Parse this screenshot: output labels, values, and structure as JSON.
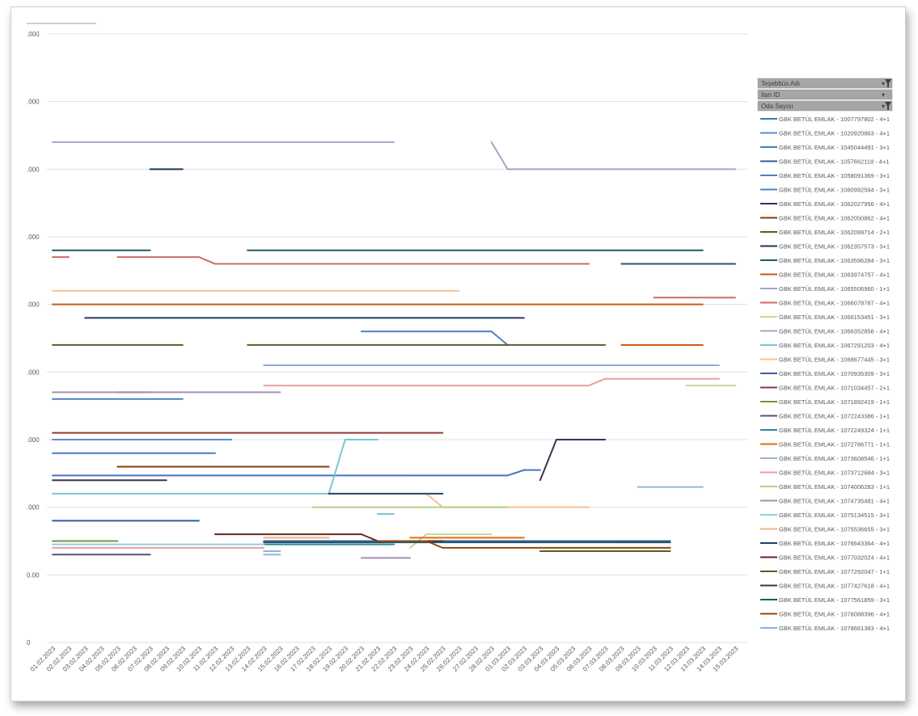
{
  "filter_buttons": [
    "Teşebbüs Adı",
    "İlan ID",
    "Oda Sayısı"
  ],
  "y_axis": {
    "ticks": [
      0,
      100,
      200,
      300,
      400,
      500,
      600,
      700,
      800,
      900
    ],
    "labels": [
      "0",
      "0.00",
      ".000",
      ".000",
      ".000",
      ".000",
      ".000",
      ".000",
      ".000",
      ".000"
    ]
  },
  "chart_data": {
    "type": "line",
    "title": "",
    "xlabel": "",
    "ylabel": "",
    "ylim": [
      0,
      900
    ],
    "grid": true,
    "legend_position": "right",
    "categories": [
      "01.02.2023",
      "02.02.2023",
      "03.02.2023",
      "04.02.2023",
      "05.02.2023",
      "06.02.2023",
      "07.02.2023",
      "08.02.2023",
      "09.02.2023",
      "10.02.2023",
      "11.02.2023",
      "12.02.2023",
      "13.02.2023",
      "14.02.2023",
      "15.02.2023",
      "16.02.2023",
      "17.02.2023",
      "18.02.2023",
      "19.02.2023",
      "20.02.2023",
      "21.02.2023",
      "22.02.2023",
      "23.02.2023",
      "24.02.2023",
      "25.02.2023",
      "26.02.2023",
      "27.02.2023",
      "28.02.2023",
      "01.03.2023",
      "02.03.2023",
      "03.03.2023",
      "04.03.2023",
      "05.03.2023",
      "06.03.2023",
      "07.03.2023",
      "08.03.2023",
      "09.03.2023",
      "10.03.2023",
      "11.03.2023",
      "12.03.2023",
      "13.03.2023",
      "14.03.2023",
      "15.03.2023"
    ],
    "series": [
      {
        "name": "GBK BETÜL EMLAK - 1007797802 - 4+1",
        "color": "#4472c4",
        "segments": [
          [
            0,
            247,
            28,
            247
          ],
          [
            28,
            247,
            29,
            255
          ],
          [
            29,
            255,
            30,
            255
          ]
        ]
      },
      {
        "name": "GBK BETÜL EMLAK - 1020920863 - 4+1",
        "color": "#5b8bd0",
        "segments": [
          [
            0,
            300,
            11,
            300
          ]
        ]
      },
      {
        "name": "GBK BETÜL EMLAK - 1045044491 - 3+1",
        "color": "#4a7cc2",
        "segments": [
          [
            0,
            280,
            10,
            280
          ]
        ]
      },
      {
        "name": "GBK BETÜL EMLAK - 1057662118 - 4+1",
        "color": "#2e5ea8",
        "segments": [
          [
            0,
            180,
            9,
            180
          ]
        ]
      },
      {
        "name": "GBK BETÜL EMLAK - 1058091369 - 3+1",
        "color": "#4f81bd",
        "segments": [
          [
            19,
            460,
            27,
            460
          ],
          [
            27,
            460,
            28,
            440
          ]
        ]
      },
      {
        "name": "GBK BETÜL EMLAK - 1060992594 - 3+1",
        "color": "#4f81bd",
        "segments": [
          [
            0,
            360,
            8,
            360
          ]
        ]
      },
      {
        "name": "GBK BETÜL EMLAK - 1062027956 - 4+1",
        "color": "#1f3864",
        "segments": [
          [
            2,
            480,
            29,
            480
          ]
        ]
      },
      {
        "name": "GBK BETÜL EMLAK - 1062050862 - 4+1",
        "color": "#843c0c",
        "segments": [
          [
            4,
            260,
            17,
            260
          ]
        ]
      },
      {
        "name": "GBK BETÜL EMLAK - 1062099714 - 2+1",
        "color": "#4e6228",
        "segments": [
          [
            0,
            440,
            8,
            440
          ],
          [
            12,
            440,
            34,
            440
          ]
        ]
      },
      {
        "name": "GBK BETÜL EMLAK - 1062357573 - 3+1",
        "color": "#17375e",
        "segments": [
          [
            6,
            700,
            8,
            700
          ]
        ]
      },
      {
        "name": "GBK BETÜL EMLAK - 1063596284 - 3+1",
        "color": "#215868",
        "segments": [
          [
            0,
            580,
            6,
            580
          ],
          [
            12,
            580,
            40,
            580
          ],
          [
            35,
            560,
            42,
            560
          ]
        ]
      },
      {
        "name": "GBK BETÜL EMLAK - 1063974757 - 4+1",
        "color": "#c55a11",
        "segments": [
          [
            0,
            500,
            40,
            500
          ],
          [
            35,
            440,
            40,
            440
          ]
        ]
      },
      {
        "name": "GBK BETÜL EMLAK - 1065506960 - 1+1",
        "color": "#8eaadb",
        "segments": [
          [
            13,
            410,
            41,
            410
          ]
        ]
      },
      {
        "name": "GBK BETÜL EMLAK - 1066078787 - 4+1",
        "color": "#cd6b6b",
        "segments": [
          [
            0,
            570,
            1,
            570
          ],
          [
            4,
            570,
            9,
            570
          ],
          [
            9,
            570,
            10,
            560
          ],
          [
            10,
            560,
            33,
            560
          ],
          [
            37,
            510,
            42,
            510
          ]
        ]
      },
      {
        "name": "GBK BETÜL EMLAK - 1066153451 - 3+1",
        "color": "#c4d79b",
        "segments": [
          [
            22,
            140,
            23,
            160
          ],
          [
            23,
            160,
            27,
            160
          ],
          [
            39,
            380,
            42,
            380
          ]
        ]
      },
      {
        "name": "GBK BETÜL EMLAK - 1066352856 - 4+1",
        "color": "#a9a1cb",
        "segments": [
          [
            0,
            740,
            21,
            740
          ],
          [
            27,
            740,
            28,
            700
          ],
          [
            28,
            700,
            42,
            700
          ]
        ]
      },
      {
        "name": "GBK BETÜL EMLAK - 1067291203 - 4+1",
        "color": "#7fc3d8",
        "segments": [
          [
            0,
            220,
            17,
            220
          ],
          [
            17,
            220,
            18,
            300
          ],
          [
            18,
            300,
            20,
            300
          ],
          [
            20,
            190,
            21,
            190
          ]
        ]
      },
      {
        "name": "GBK BETÜL EMLAK - 1068677445 - 3+1",
        "color": "#fac090",
        "segments": [
          [
            0,
            520,
            25,
            520
          ],
          [
            23,
            220,
            24,
            200
          ],
          [
            24,
            200,
            33,
            200
          ]
        ]
      },
      {
        "name": "GBK BETÜL EMLAK - 1070935309 - 3+1",
        "color": "#3a5fa0",
        "segments": [
          [
            13,
            150,
            38,
            150
          ]
        ]
      },
      {
        "name": "GBK BETÜL EMLAK - 1071034457 - 2+1",
        "color": "#953735",
        "segments": [
          [
            0,
            310,
            24,
            310
          ],
          [
            4,
            370,
            6,
            370
          ]
        ]
      },
      {
        "name": "GBK BETÜL EMLAK - 1071892419 - 1+1",
        "color": "#77933c",
        "segments": [
          [
            0,
            150,
            4,
            150
          ]
        ]
      },
      {
        "name": "GBK BETÜL EMLAK - 1072243386 - 1+1",
        "color": "#604a7b",
        "segments": [
          [
            0,
            130,
            6,
            130
          ]
        ]
      },
      {
        "name": "GBK BETÜL EMLAK - 1072249324 - 1+1",
        "color": "#31859c",
        "segments": [
          [
            13,
            145,
            21,
            145
          ]
        ]
      },
      {
        "name": "GBK BETÜL EMLAK - 1072786771 - 1+1",
        "color": "#e46c0a",
        "segments": [
          [
            22,
            155,
            29,
            155
          ]
        ]
      },
      {
        "name": "GBK BETÜL EMLAK - 1073608546 - 1+1",
        "color": "#95b3d7",
        "segments": [
          [
            36,
            230,
            40,
            230
          ],
          [
            13,
            130,
            14,
            130
          ]
        ]
      },
      {
        "name": "GBK BETÜL EMLAK - 1073712684 - 3+1",
        "color": "#e6a0a0",
        "segments": [
          [
            0,
            140,
            13,
            140
          ],
          [
            13,
            380,
            33,
            380
          ],
          [
            33,
            380,
            34,
            390
          ],
          [
            34,
            390,
            41,
            390
          ]
        ]
      },
      {
        "name": "GBK BETÜL EMLAK - 1074006283 - 1+1",
        "color": "#b3d08a",
        "segments": [
          [
            16,
            200,
            28,
            200
          ]
        ]
      },
      {
        "name": "GBK BETÜL EMLAK - 1074735481 - 4+1",
        "color": "#a68fb6",
        "segments": [
          [
            0,
            370,
            14,
            370
          ],
          [
            19,
            125,
            22,
            125
          ]
        ]
      },
      {
        "name": "GBK BETÜL EMLAK - 1075134515 - 3+1",
        "color": "#93cddd",
        "segments": [
          [
            0,
            145,
            13,
            145
          ]
        ]
      },
      {
        "name": "GBK BETÜL EMLAK - 1075536655 - 3+1",
        "color": "#f4b183",
        "segments": [
          [
            13,
            155,
            17,
            155
          ]
        ]
      },
      {
        "name": "GBK BETÜL EMLAK - 1076643364 - 4+1",
        "color": "#254061",
        "segments": [
          [
            17,
            220,
            24,
            220
          ]
        ]
      },
      {
        "name": "GBK BETÜL EMLAK - 1077032024 - 4+1",
        "color": "#632523",
        "segments": [
          [
            10,
            160,
            19,
            160
          ],
          [
            19,
            160,
            20,
            150
          ],
          [
            20,
            150,
            24,
            150
          ]
        ]
      },
      {
        "name": "GBK BETÜL EMLAK - 1077292047 - 1+1",
        "color": "#4f6228",
        "segments": [
          [
            30,
            135,
            38,
            135
          ]
        ]
      },
      {
        "name": "GBK BETÜL EMLAK - 1077427618 - 4+1",
        "color": "#403151",
        "segments": [
          [
            30,
            240,
            31,
            300
          ],
          [
            31,
            300,
            34,
            300
          ],
          [
            0,
            240,
            7,
            240
          ]
        ]
      },
      {
        "name": "GBK BETÜL EMLAK - 1077561859 - 3+1",
        "color": "#205867",
        "segments": [
          [
            13,
            148,
            38,
            148
          ]
        ]
      },
      {
        "name": "GBK BETÜL EMLAK - 1078088396 - 4+1",
        "color": "#974706",
        "segments": [
          [
            20,
            150,
            23,
            150
          ],
          [
            23,
            150,
            24,
            140
          ],
          [
            24,
            140,
            38,
            140
          ]
        ]
      },
      {
        "name": "GBK BETÜL EMLAK - 1078661383 - 4+1",
        "color": "#8db3e2",
        "segments": [
          [
            13,
            135,
            14,
            135
          ]
        ]
      }
    ]
  }
}
